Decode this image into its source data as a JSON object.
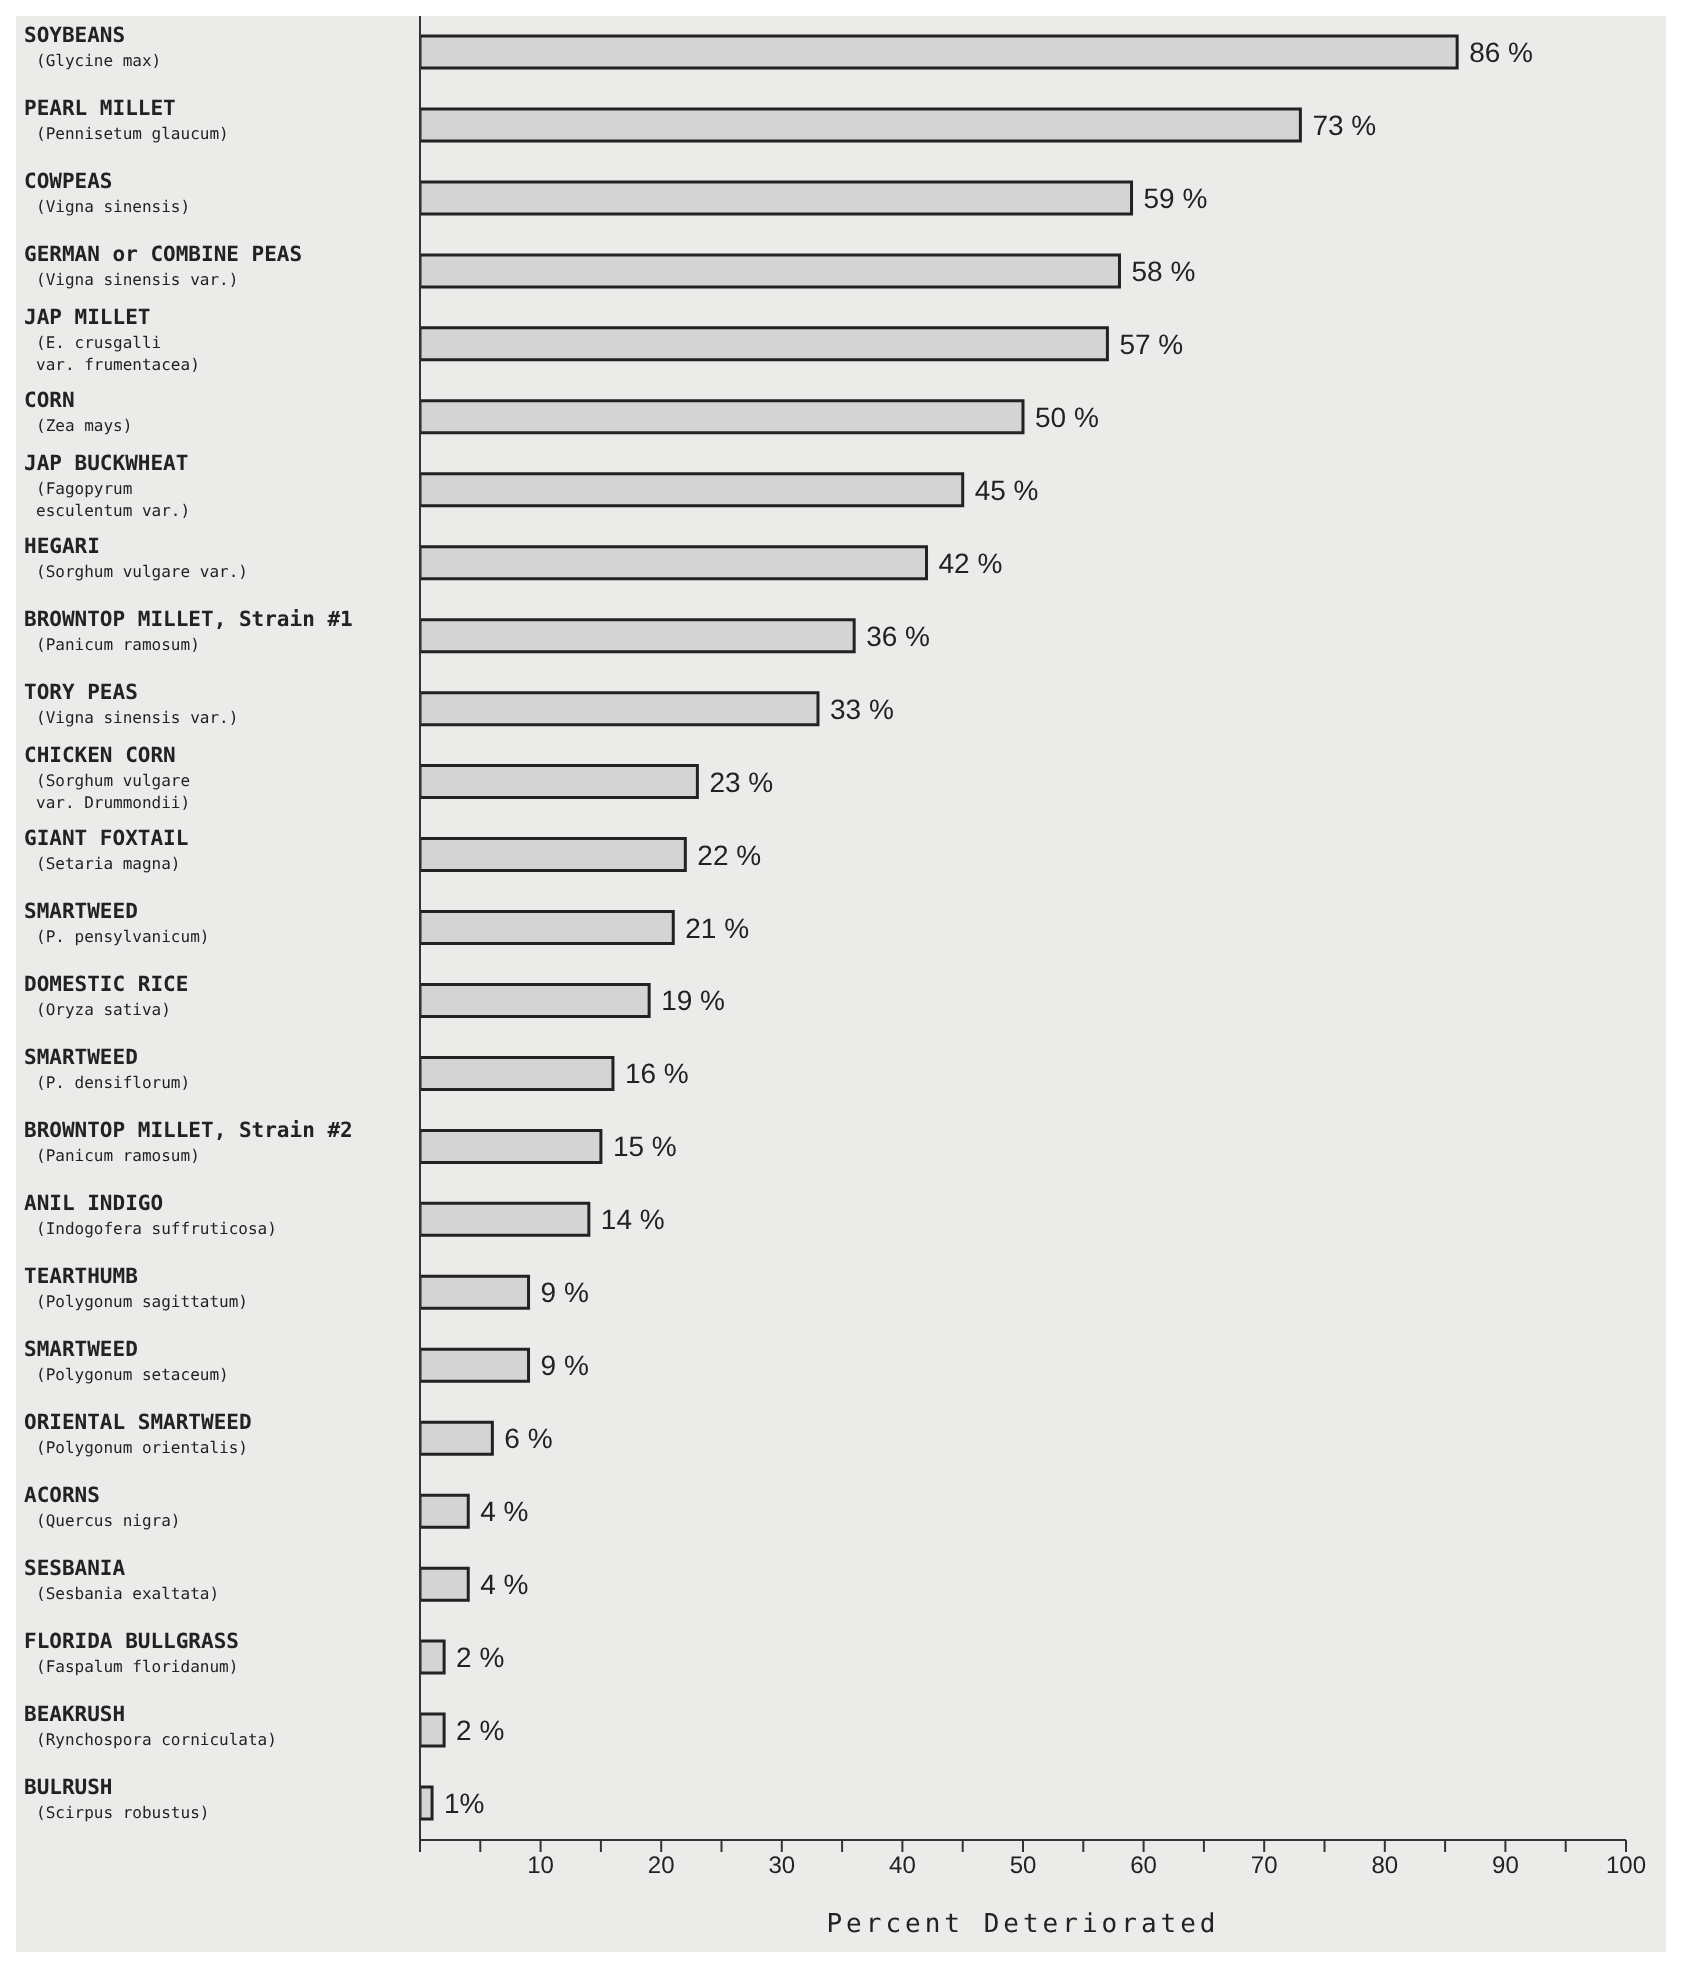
{
  "chart_data": {
    "type": "bar",
    "orientation": "horizontal",
    "xlabel": "Percent Deteriorated",
    "categories": [
      "SOYBEANS\n(Glycine max)",
      "PEARL MILLET\n(Pennisetum glaucum)",
      "COWPEAS\n(Vigna sinensis)",
      "GERMAN or COMBINE PEAS\n(Vigna sinensis var.)",
      "JAP MILLET\n(E. crusgalli\nvar. frumentacea)",
      "CORN\n(Zea mays)",
      "JAP BUCKWHEAT\n(Fagopyrum\nesculentum var.)",
      "HEGARI\n(Sorghum vulgare var.)",
      "BROWNTOP MILLET, Strain #1\n(Panicum ramosum)",
      "TORY PEAS\n(Vigna sinensis var.)",
      "CHICKEN CORN\n(Sorghum vulgare\nvar. Drummondii)",
      "GIANT FOXTAIL\n(Setaria magna)",
      "SMARTWEED\n(P. pensylvanicum)",
      "DOMESTIC RICE\n(Oryza sativa)",
      "SMARTWEED\n(P. densiflorum)",
      "BROWNTOP MILLET, Strain #2\n(Panicum ramosum)",
      "ANIL INDIGO\n(Indogofera suffruticosa)",
      "TEARTHUMB\n(Polygonum sagittatum)",
      "SMARTWEED\n(Polygonum setaceum)",
      "ORIENTAL SMARTWEED\n(Polygonum orientalis)",
      "ACORNS\n(Quercus nigra)",
      "SESBANIA\n(Sesbania exaltata)",
      "FLORIDA BULLGRASS\n(Faspalum floridanum)",
      "BEAKRUSH\n(Rynchospora corniculata)",
      "BULRUSH\n(Scirpus robustus)"
    ],
    "values": [
      86,
      73,
      59,
      58,
      57,
      50,
      45,
      42,
      36,
      33,
      23,
      22,
      21,
      19,
      16,
      15,
      14,
      9,
      9,
      6,
      4,
      4,
      2,
      2,
      1
    ],
    "value_labels": [
      "86 %",
      "73 %",
      "59 %",
      "58 %",
      "57 %",
      "50 %",
      "45 %",
      "42 %",
      "36 %",
      "33 %",
      "23 %",
      "22 %",
      "21 %",
      "19 %",
      "16 %",
      "15 %",
      "14 %",
      "9 %",
      "9 %",
      "6 %",
      "4 %",
      "4 %",
      "2 %",
      "2 %",
      "1%"
    ],
    "color": "#d4d4d4",
    "xlim": [
      0,
      100
    ],
    "xticks": [
      {
        "value": 0,
        "label": null
      },
      {
        "value": 5,
        "label": null
      },
      10,
      {
        "value": 15,
        "label": null
      },
      20,
      {
        "value": 25,
        "label": null
      },
      30,
      {
        "value": 35,
        "label": null
      },
      40,
      {
        "value": 45,
        "label": null
      },
      50,
      {
        "value": 55,
        "label": null
      },
      60,
      {
        "value": 65,
        "label": null
      },
      70,
      {
        "value": 75,
        "label": null
      },
      80,
      {
        "value": 85,
        "label": null
      },
      90,
      {
        "value": 95,
        "label": null
      },
      100
    ],
    "grid": false,
    "legend": false
  }
}
